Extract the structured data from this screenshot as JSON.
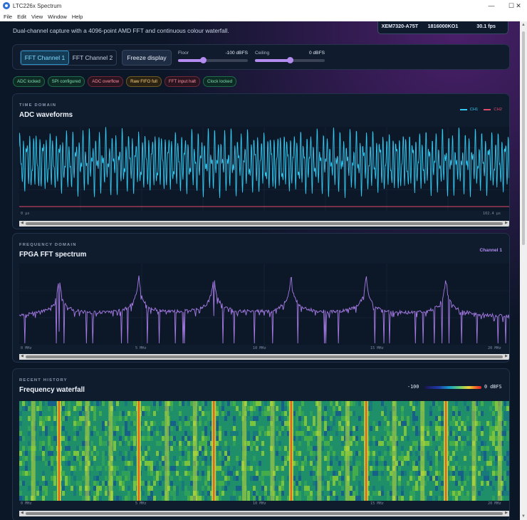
{
  "window": {
    "title": "LTC226x Spectrum"
  },
  "menu": [
    "File",
    "Edit",
    "View",
    "Window",
    "Help"
  ],
  "header": {
    "subtitle": "Dual-channel capture with a 4096-point AMD FFT and continuous colour waterfall.",
    "device": "XEM7320-A75T",
    "serial": "1816000KO1",
    "fps": "30.1 fps"
  },
  "controls": {
    "channel_tabs": [
      "FFT Channel 1",
      "FFT Channel 2"
    ],
    "active_tab": 0,
    "freeze_label": "Freeze display",
    "floor": {
      "label": "Floor",
      "value": "-100 dBFS",
      "fraction": 0.36
    },
    "ceiling": {
      "label": "Ceiling",
      "value": "0 dBFS",
      "fraction": 0.5
    }
  },
  "status_badges": [
    {
      "label": "ADC locked",
      "state": "ok"
    },
    {
      "label": "SPI configured",
      "state": "ok"
    },
    {
      "label": "ADC overflow",
      "state": "bad"
    },
    {
      "label": "Raw FIFO full",
      "state": "warn"
    },
    {
      "label": "FFT input halt",
      "state": "bad"
    },
    {
      "label": "Clock locked",
      "state": "ok"
    }
  ],
  "time_panel": {
    "eyebrow": "TIME DOMAIN",
    "title": "ADC waveforms",
    "legend": [
      {
        "name": "CH1",
        "color": "#33c8f0"
      },
      {
        "name": "CH2",
        "color": "#e24a6a"
      }
    ],
    "x_start": "0 µs",
    "x_end": "102.4 µs"
  },
  "freq_panel": {
    "eyebrow": "FREQUENCY DOMAIN",
    "title": "FPGA FFT spectrum",
    "channel": "Channel 1",
    "ticks": [
      "0 MHz",
      "5 MHz",
      "10 MHz",
      "15 MHz",
      "20 MHz"
    ],
    "line_color": "#a77be6"
  },
  "waterfall_panel": {
    "eyebrow": "RECENT HISTORY",
    "title": "Frequency waterfall",
    "scale_min": "-100",
    "scale_max": "0 dBFS",
    "ticks": [
      "0 MHz",
      "5 MHz",
      "10 MHz",
      "15 MHz",
      "20 MHz"
    ]
  },
  "spectrum_peaks_mhz": [
    1.7,
    5.1,
    8.3,
    11.6,
    14.8,
    18.2
  ],
  "chart_data": [
    {
      "type": "line",
      "title": "ADC waveforms",
      "xlabel": "",
      "ylabel": "",
      "xlim": [
        0,
        102.4
      ],
      "series": [
        {
          "name": "CH1",
          "description": "dense periodic waveform filling the plot"
        },
        {
          "name": "CH2",
          "description": "flat line near the bottom"
        }
      ]
    },
    {
      "type": "line",
      "title": "FPGA FFT spectrum",
      "xlim": [
        0,
        20.9
      ],
      "x_ticks": [
        0,
        5,
        10,
        15,
        20
      ],
      "peaks_mhz": [
        1.7,
        5.1,
        8.3,
        11.6,
        14.8,
        18.2
      ]
    },
    {
      "type": "heatmap",
      "title": "Frequency waterfall",
      "x_ticks": [
        0,
        5,
        10,
        15,
        20
      ],
      "colorbar": [
        -100,
        0
      ]
    }
  ]
}
